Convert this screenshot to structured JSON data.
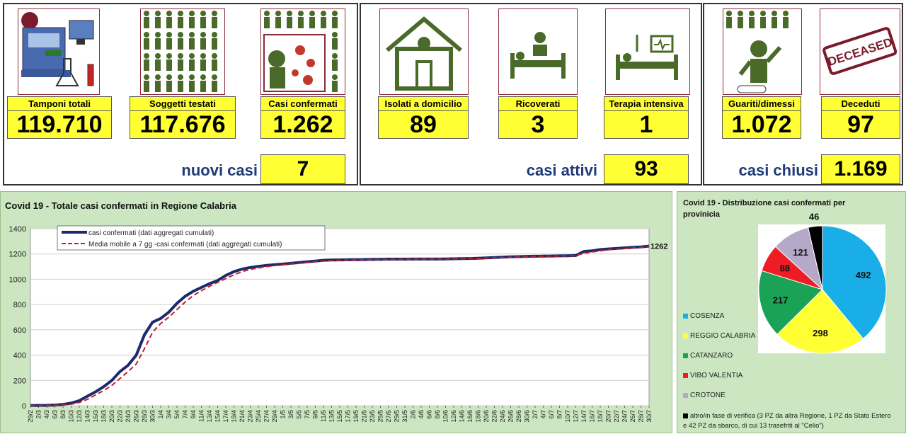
{
  "tiles": [
    {
      "label": "Tamponi totali",
      "value": "119.710",
      "icon": "lab-equipment-icon"
    },
    {
      "label": "Soggetti testati",
      "value": "117.676",
      "icon": "people-grid-icon"
    },
    {
      "label": "Casi confermati",
      "value": "1.262",
      "icon": "virus-person-icon"
    },
    {
      "label": "Isolati a domicilio",
      "value": "89",
      "icon": "house-icon"
    },
    {
      "label": "Ricoverati",
      "value": "3",
      "icon": "hospital-bed-icon"
    },
    {
      "label": "Terapia intensiva",
      "value": "1",
      "icon": "icu-bed-icon"
    },
    {
      "label": "Guariti/dimessi",
      "value": "1.072",
      "icon": "recovered-person-icon"
    },
    {
      "label": "Deceduti",
      "value": "97",
      "icon": "deceased-stamp-icon"
    }
  ],
  "summary": {
    "nuovi_label": "nuovi casi",
    "nuovi_value": "7",
    "attivi_label": "casi attivi",
    "attivi_value": "93",
    "chiusi_label": "casi chiusi",
    "chiusi_value": "1.169"
  },
  "deceased_stamp": "DECEASED",
  "colors": {
    "yellow": "#ffff33",
    "line": "#1a2a6c",
    "mavg": "#c0202a",
    "panel": "#cbe6c0"
  },
  "chart_data": [
    {
      "type": "line",
      "title": "Covid 19 - Totale casi confermati in Regione Calabria",
      "xlabel": "",
      "ylabel": "",
      "ylim": [
        0,
        1400
      ],
      "yticks": [
        0,
        200,
        400,
        600,
        800,
        1000,
        1200,
        1400
      ],
      "x": [
        "29/2",
        "2/3",
        "4/3",
        "6/3",
        "8/3",
        "10/3",
        "12/3",
        "14/3",
        "16/3",
        "18/3",
        "20/3",
        "22/3",
        "24/3",
        "26/3",
        "28/3",
        "30/3",
        "1/4",
        "3/4",
        "5/4",
        "7/4",
        "9/4",
        "11/4",
        "13/4",
        "15/4",
        "17/4",
        "19/4",
        "21/4",
        "23/4",
        "25/4",
        "27/4",
        "29/4",
        "1/5",
        "3/5",
        "5/5",
        "7/5",
        "9/5",
        "11/5",
        "13/5",
        "15/5",
        "17/5",
        "19/5",
        "21/5",
        "23/5",
        "25/5",
        "27/5",
        "29/5",
        "31/5",
        "2/6",
        "4/6",
        "6/6",
        "8/6",
        "10/6",
        "12/6",
        "14/6",
        "16/6",
        "18/6",
        "20/6",
        "22/6",
        "24/6",
        "26/6",
        "28/6",
        "30/6",
        "2/7",
        "4/7",
        "6/7",
        "8/7",
        "10/7",
        "12/7",
        "14/7",
        "16/7",
        "18/7",
        "20/7",
        "22/7",
        "24/7",
        "26/7",
        "28/7",
        "30/7"
      ],
      "series": [
        {
          "name": "casi confermati (dati aggregati cumulati)",
          "color": "#1a2a6c",
          "values": [
            1,
            2,
            3,
            5,
            10,
            20,
            40,
            75,
            110,
            150,
            200,
            270,
            320,
            400,
            560,
            660,
            690,
            740,
            810,
            865,
            905,
            935,
            965,
            990,
            1030,
            1060,
            1080,
            1093,
            1102,
            1110,
            1115,
            1120,
            1126,
            1132,
            1138,
            1144,
            1150,
            1152,
            1153,
            1154,
            1155,
            1156,
            1157,
            1158,
            1159,
            1159,
            1159,
            1160,
            1160,
            1160,
            1160,
            1161,
            1162,
            1163,
            1164,
            1166,
            1169,
            1172,
            1175,
            1177,
            1179,
            1181,
            1182,
            1183,
            1184,
            1185,
            1186,
            1188,
            1220,
            1225,
            1235,
            1240,
            1244,
            1248,
            1252,
            1256,
            1262
          ]
        },
        {
          "name": "Media mobile a 7 gg -casi confermati (dati aggregati cumulati)",
          "color": "#c0202a",
          "values": [
            0,
            1,
            2,
            3,
            6,
            12,
            25,
            50,
            85,
            120,
            160,
            215,
            270,
            330,
            450,
            580,
            650,
            700,
            760,
            820,
            870,
            910,
            945,
            975,
            1005,
            1035,
            1060,
            1078,
            1090,
            1100,
            1108,
            1114,
            1120,
            1126,
            1132,
            1138,
            1144,
            1148,
            1150,
            1152,
            1153,
            1154,
            1155,
            1156,
            1157,
            1158,
            1158,
            1159,
            1159,
            1159,
            1160,
            1160,
            1161,
            1162,
            1163,
            1164,
            1166,
            1169,
            1172,
            1174,
            1177,
            1179,
            1181,
            1182,
            1183,
            1184,
            1185,
            1187,
            1205,
            1215,
            1225,
            1233,
            1238,
            1243,
            1248,
            1252,
            1258
          ]
        }
      ],
      "end_label": "1262",
      "legend_position": "top-left"
    },
    {
      "type": "pie",
      "title": "Covid 19 - Distribuzione casi confermati per provinicia",
      "categories": [
        "COSENZA",
        "REGGIO CALABRIA",
        "CATANZARO",
        "VIBO VALENTIA",
        "CROTONE",
        "altro/in fase di verifica (3 PZ da altra Regione, 1 PZ da Stato Estero e 42 PZ da sbarco, di cui 13 trasefriti al \"Celio\")"
      ],
      "values": [
        492,
        298,
        217,
        88,
        121,
        46
      ],
      "colors": [
        "#1aaee8",
        "#ffff33",
        "#1aa356",
        "#ee1c25",
        "#b5a8c8",
        "#000000"
      ],
      "legend_position": "left"
    }
  ]
}
